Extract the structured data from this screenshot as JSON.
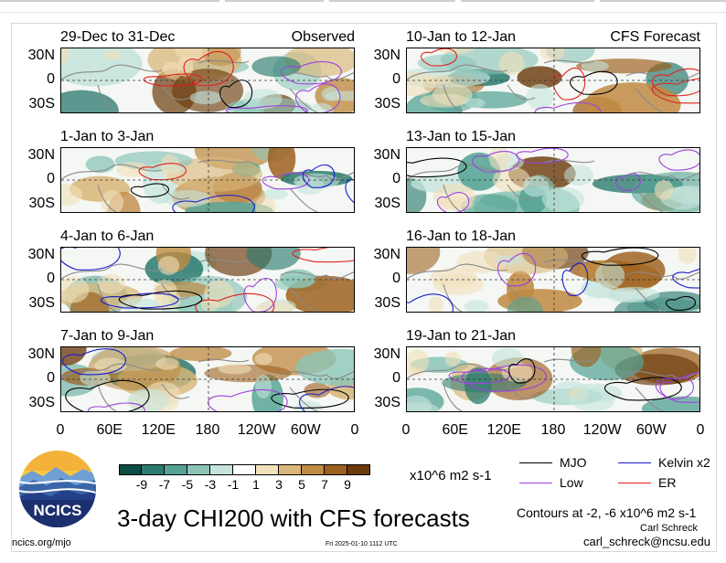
{
  "page": {
    "main_title": "3-day CHI200 with CFS forecasts",
    "units_label": "x10^6 m2 s-1",
    "contour_note": "Contours at -2, -6 x10^6 m2 s-1",
    "author": "Carl Schreck",
    "email": "carl_schreck@ncsu.edu",
    "website": "ncics.org/mjo",
    "timestamp": "Fri 2025-01-10 1112 UTC",
    "logo_text": "NCICS"
  },
  "panels": [
    {
      "title": "29-Dec to 31-Dec",
      "label": "Observed"
    },
    {
      "title": "1-Jan to 3-Jan",
      "label": ""
    },
    {
      "title": "4-Jan to 6-Jan",
      "label": ""
    },
    {
      "title": "7-Jan to 9-Jan",
      "label": ""
    },
    {
      "title": "10-Jan to 12-Jan",
      "label": "CFS Forecast"
    },
    {
      "title": "13-Jan to 15-Jan",
      "label": ""
    },
    {
      "title": "16-Jan to 18-Jan",
      "label": ""
    },
    {
      "title": "19-Jan to 21-Jan",
      "label": ""
    }
  ],
  "axes": {
    "y_ticks": [
      "30N",
      "0",
      "30S"
    ],
    "x_ticks": [
      "0",
      "60E",
      "120E",
      "180",
      "120W",
      "60W",
      "0"
    ]
  },
  "colorbar": {
    "ticks": [
      "-9",
      "-7",
      "-5",
      "-3",
      "-1",
      "1",
      "3",
      "5",
      "7",
      "9"
    ],
    "colors": [
      "#0b4d44",
      "#2a7a6e",
      "#55a394",
      "#8cc5b8",
      "#c4e4dc",
      "#ffffff",
      "#f1e0b9",
      "#d9b77a",
      "#bf8a42",
      "#9c5f1c",
      "#6b3a0b"
    ]
  },
  "legend": [
    {
      "label": "MJO",
      "color": "#000000"
    },
    {
      "label": "Kelvin x2",
      "color": "#1a1acc"
    },
    {
      "label": "Low",
      "color": "#a040e0"
    },
    {
      "label": "ER",
      "color": "#e02020"
    }
  ],
  "chart_data": {
    "type": "heatmap",
    "title": "3-day CHI200 with CFS forecasts",
    "units": "x10^6 m2 s-1",
    "x_ticks": [
      "0",
      "60E",
      "120E",
      "180",
      "120W",
      "60W",
      "0"
    ],
    "y_ticks": [
      "30N",
      "0",
      "30S"
    ],
    "color_levels": [
      -9,
      -7,
      -5,
      -3,
      -1,
      1,
      3,
      5,
      7,
      9
    ],
    "contour_levels": [
      -2,
      -6
    ],
    "contour_series": [
      "MJO",
      "Kelvin x2",
      "Low",
      "ER"
    ]
  }
}
